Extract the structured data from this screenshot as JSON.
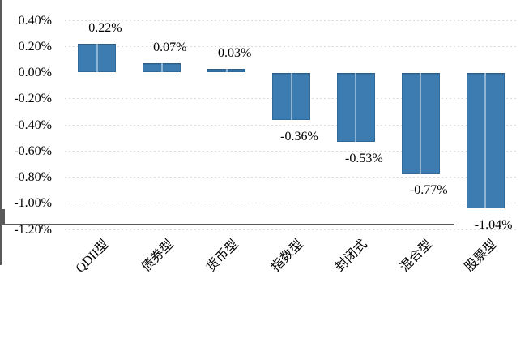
{
  "chart_data": {
    "type": "bar",
    "title": "",
    "xlabel": "",
    "ylabel": "",
    "legend": "none",
    "grid": "horizontal-dotted",
    "categories": [
      "QDII型",
      "债券型",
      "货币型",
      "指数型",
      "封闭式",
      "混合型",
      "股票型"
    ],
    "values": [
      0.22,
      0.07,
      0.03,
      -0.36,
      -0.53,
      -0.77,
      -1.04
    ],
    "data_labels": [
      "0.22%",
      "0.07%",
      "0.03%",
      "-0.36%",
      "-0.53%",
      "-0.77%",
      "-1.04%"
    ],
    "y_tick_labels": [
      "0.40%",
      "0.20%",
      "0.00%",
      "-0.20%",
      "-0.40%",
      "-0.60%",
      "-0.80%",
      "-1.00%",
      "-1.20%"
    ],
    "y_tick_values": [
      0.4,
      0.2,
      0.0,
      -0.2,
      -0.4,
      -0.6,
      -0.8,
      -1.0,
      -1.2
    ],
    "ylim": [
      -1.2,
      0.4
    ],
    "unit": "%",
    "colors": {
      "bar_fill": "#3C7CB1",
      "bar_split_line": "#93B4D0",
      "axis_line": "#595959",
      "gridline": "#DBDBDB",
      "label_text": "#000000",
      "background": "#FFFFFF"
    }
  }
}
